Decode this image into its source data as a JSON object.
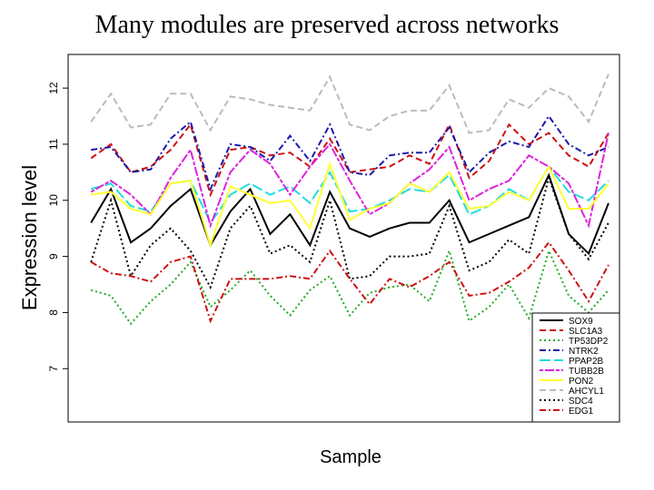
{
  "chart_data": {
    "type": "line",
    "title": "Many modules are preserved across networks",
    "x_label": "Sample",
    "y_label": "Expression level",
    "x": [
      1,
      2,
      3,
      4,
      5,
      6,
      7,
      8,
      9,
      10,
      11,
      12,
      13,
      14,
      15,
      16,
      17,
      18,
      19,
      20,
      21,
      22,
      23,
      24,
      25,
      26,
      27
    ],
    "xlim": [
      -0.15,
      27.55
    ],
    "ylim": [
      6.05,
      12.6
    ],
    "yticks": [
      7,
      8,
      9,
      10,
      11,
      12
    ],
    "grid": false,
    "legend": "lower right",
    "series": [
      {
        "name": "SOX9",
        "color": "#000000",
        "dash": "solid",
        "values": [
          9.6,
          10.2,
          9.25,
          9.5,
          9.9,
          10.2,
          9.2,
          9.8,
          10.2,
          9.4,
          9.75,
          9.2,
          10.15,
          9.5,
          9.35,
          9.5,
          9.6,
          9.6,
          10.0,
          9.25,
          9.4,
          9.55,
          9.7,
          10.45,
          9.4,
          9.05,
          9.95
        ]
      },
      {
        "name": "SLC1A3",
        "color": "#cc1111",
        "dash": "dashed",
        "values": [
          10.75,
          11.0,
          10.5,
          10.6,
          10.9,
          11.35,
          10.1,
          10.9,
          10.95,
          10.8,
          10.85,
          10.6,
          11.1,
          10.5,
          10.55,
          10.6,
          10.8,
          10.65,
          11.35,
          10.4,
          10.7,
          11.35,
          11.0,
          11.2,
          10.8,
          10.6,
          11.2
        ]
      },
      {
        "name": "TP53DP2",
        "color": "#22aa22",
        "dash": "dotted",
        "values": [
          8.4,
          8.3,
          7.8,
          8.2,
          8.5,
          8.9,
          8.1,
          8.4,
          8.75,
          8.3,
          7.95,
          8.4,
          8.65,
          7.95,
          8.35,
          8.45,
          8.5,
          8.2,
          9.1,
          7.85,
          8.1,
          8.5,
          7.9,
          9.1,
          8.3,
          8.0,
          8.4
        ]
      },
      {
        "name": "NTRK2",
        "color": "#1a1aaa",
        "dash": "dashdot",
        "values": [
          10.9,
          10.95,
          10.5,
          10.55,
          11.1,
          11.4,
          10.2,
          11.0,
          10.95,
          10.7,
          11.15,
          10.7,
          11.35,
          10.5,
          10.45,
          10.8,
          10.85,
          10.85,
          11.3,
          10.5,
          10.85,
          11.05,
          10.95,
          11.5,
          11.0,
          10.8,
          10.95
        ]
      },
      {
        "name": "PPAP2B",
        "color": "#22dddd",
        "dash": "longdash",
        "values": [
          10.2,
          10.3,
          9.9,
          9.8,
          10.3,
          10.35,
          9.6,
          10.1,
          10.3,
          10.1,
          10.25,
          9.95,
          10.5,
          9.8,
          9.85,
          10.0,
          10.2,
          10.15,
          10.45,
          9.75,
          9.9,
          10.2,
          10.0,
          10.6,
          10.15,
          10.0,
          10.35
        ]
      },
      {
        "name": "TUBB2B",
        "color": "#dd22dd",
        "dash": "twodash",
        "values": [
          10.15,
          10.35,
          10.1,
          9.75,
          10.4,
          10.9,
          9.55,
          10.5,
          10.9,
          10.65,
          10.1,
          10.6,
          11.0,
          10.35,
          9.75,
          9.95,
          10.3,
          10.55,
          10.95,
          10.0,
          10.2,
          10.35,
          10.8,
          10.6,
          10.3,
          9.55,
          11.2
        ]
      },
      {
        "name": "PON2",
        "color": "#ffff33",
        "dash": "solid",
        "values": [
          10.1,
          10.15,
          9.85,
          9.75,
          10.3,
          10.35,
          9.2,
          10.25,
          10.1,
          9.95,
          10.0,
          9.5,
          10.65,
          9.65,
          9.85,
          9.95,
          10.3,
          10.15,
          10.5,
          9.85,
          9.9,
          10.15,
          10.0,
          10.6,
          9.85,
          9.85,
          10.3
        ]
      },
      {
        "name": "AHCYL1",
        "color": "#bbbbbb",
        "dash": "dashed",
        "values": [
          11.4,
          11.9,
          11.3,
          11.35,
          11.9,
          11.9,
          11.25,
          11.85,
          11.8,
          11.7,
          11.65,
          11.6,
          12.2,
          11.35,
          11.25,
          11.5,
          11.6,
          11.6,
          12.05,
          11.2,
          11.25,
          11.8,
          11.65,
          12.0,
          11.85,
          11.4,
          12.25
        ]
      },
      {
        "name": "SDC4",
        "color": "#000000",
        "dash": "dotted",
        "values": [
          8.9,
          10.0,
          8.65,
          9.2,
          9.5,
          9.1,
          8.45,
          9.5,
          9.9,
          9.05,
          9.2,
          8.9,
          10.0,
          8.6,
          8.65,
          9.0,
          9.0,
          9.05,
          9.9,
          8.75,
          8.9,
          9.3,
          9.05,
          10.4,
          9.4,
          8.95,
          9.6
        ]
      },
      {
        "name": "EDG1",
        "color": "#cc1111",
        "dash": "dashdot",
        "values": [
          8.9,
          8.7,
          8.65,
          8.55,
          8.9,
          9.0,
          7.85,
          8.6,
          8.6,
          8.6,
          8.65,
          8.6,
          9.1,
          8.6,
          8.15,
          8.6,
          8.45,
          8.65,
          8.9,
          8.3,
          8.35,
          8.55,
          8.8,
          9.25,
          8.75,
          8.2,
          8.85
        ]
      }
    ]
  }
}
